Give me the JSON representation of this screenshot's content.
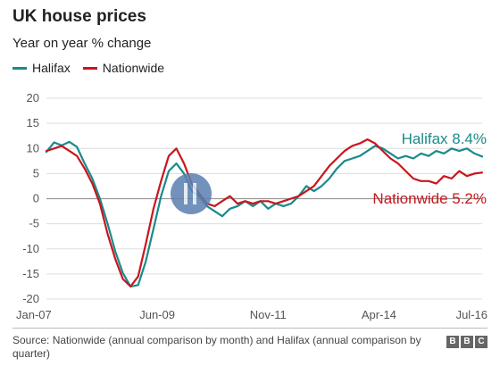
{
  "header": {
    "title": "UK house prices",
    "subtitle": "Year on year % change"
  },
  "legend": {
    "halifax": "Halifax",
    "nationwide": "Nationwide"
  },
  "end_labels": {
    "halifax": "Halifax 8.4%",
    "nationwide": "Nationwide 5.2%"
  },
  "footer": {
    "source": "Source: Nationwide (annual comparison by month) and Halifax (annual comparison by quarter)",
    "brand": [
      "B",
      "B",
      "C"
    ]
  },
  "colors": {
    "halifax": "#1a8a8a",
    "nationwide": "#c8161d",
    "grid": "#dddddd",
    "zero": "#999999"
  },
  "chart_data": {
    "type": "line",
    "x_ticks": [
      "Jan-07",
      "Jun-09",
      "Nov-11",
      "Apr-14",
      "Jul-16"
    ],
    "x_tick_months": [
      0,
      29,
      58,
      87,
      114
    ],
    "x_range_months": [
      0,
      114
    ],
    "x_start": "Jan-07",
    "ylim": [
      -20,
      20
    ],
    "yticks": [
      20,
      15,
      10,
      5,
      0,
      -5,
      -10,
      -15,
      -20
    ],
    "grid": true,
    "legend_position": "top-left",
    "series": [
      {
        "name": "Halifax",
        "color": "#1a8a8a",
        "months": [
          0,
          2,
          4,
          6,
          8,
          10,
          12,
          14,
          16,
          18,
          20,
          22,
          24,
          26,
          28,
          30,
          32,
          34,
          36,
          38,
          40,
          42,
          44,
          46,
          48,
          50,
          52,
          54,
          56,
          58,
          60,
          62,
          64,
          66,
          68,
          70,
          72,
          74,
          76,
          78,
          80,
          82,
          84,
          86,
          88,
          90,
          92,
          94,
          96,
          98,
          100,
          102,
          104,
          106,
          108,
          110,
          112,
          114
        ],
        "values": [
          9.3,
          11.2,
          10.6,
          11.3,
          10.3,
          7.0,
          4.0,
          0.0,
          -5.0,
          -10.5,
          -14.8,
          -17.5,
          -17.2,
          -12.5,
          -6.0,
          0.5,
          5.5,
          7.0,
          5.0,
          1.5,
          0.5,
          -1.5,
          -2.5,
          -3.5,
          -2.0,
          -1.5,
          -0.5,
          -1.5,
          -0.5,
          -2.0,
          -1.0,
          -1.5,
          -1.0,
          0.5,
          2.5,
          1.5,
          2.5,
          4.0,
          6.0,
          7.5,
          8.0,
          8.5,
          9.5,
          10.5,
          10.0,
          9.0,
          8.0,
          8.5,
          8.0,
          9.0,
          8.5,
          9.5,
          9.0,
          10.0,
          9.5,
          10.0,
          9.0,
          8.4
        ]
      },
      {
        "name": "Nationwide",
        "color": "#c8161d",
        "months": [
          0,
          2,
          4,
          6,
          8,
          10,
          12,
          14,
          16,
          18,
          20,
          22,
          24,
          26,
          28,
          30,
          32,
          34,
          36,
          38,
          40,
          42,
          44,
          46,
          48,
          50,
          52,
          54,
          56,
          58,
          60,
          62,
          64,
          66,
          68,
          70,
          72,
          74,
          76,
          78,
          80,
          82,
          84,
          86,
          88,
          90,
          92,
          94,
          96,
          98,
          100,
          102,
          104,
          106,
          108,
          110,
          112,
          114
        ],
        "values": [
          9.5,
          10.0,
          10.5,
          9.5,
          8.5,
          6.0,
          3.0,
          -1.0,
          -7.0,
          -12.0,
          -16.0,
          -17.5,
          -15.5,
          -9.0,
          -2.0,
          3.5,
          8.5,
          10.0,
          7.0,
          3.0,
          1.0,
          -1.0,
          -1.5,
          -0.5,
          0.5,
          -1.0,
          -0.5,
          -1.0,
          -0.5,
          -0.5,
          -1.0,
          -0.5,
          0.0,
          0.5,
          1.5,
          2.5,
          4.5,
          6.5,
          8.0,
          9.5,
          10.5,
          11.0,
          11.8,
          11.0,
          9.5,
          8.0,
          7.0,
          5.5,
          4.0,
          3.5,
          3.5,
          3.0,
          4.5,
          4.0,
          5.5,
          4.5,
          5.0,
          5.2
        ]
      }
    ]
  }
}
